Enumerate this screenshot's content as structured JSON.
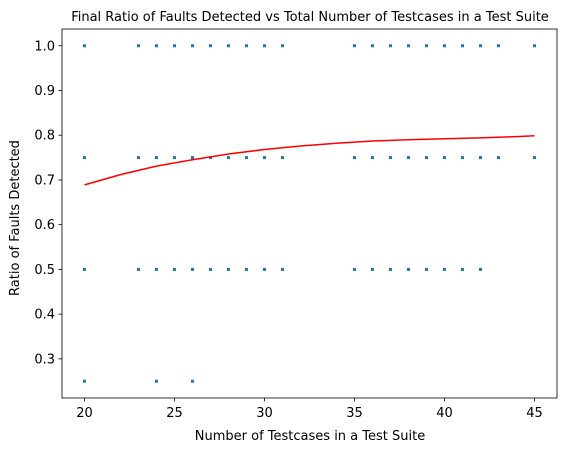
{
  "chart_data": {
    "type": "scatter",
    "title": "Final Ratio of Faults Detected vs Total Number of Testcases in a Test Suite",
    "xlabel": "Number of Testcases in a Test Suite",
    "ylabel": "Ratio of Faults Detected",
    "xlim": [
      18.75,
      46.25
    ],
    "ylim": [
      0.2125,
      1.0375
    ],
    "x_ticks": [
      20,
      25,
      30,
      35,
      40,
      45
    ],
    "y_ticks": [
      0.3,
      0.4,
      0.5,
      0.6,
      0.7,
      0.8,
      0.9,
      1.0
    ],
    "x_tick_labels": [
      "20",
      "25",
      "30",
      "35",
      "40",
      "45"
    ],
    "y_tick_labels": [
      "0.3",
      "0.4",
      "0.5",
      "0.6",
      "0.7",
      "0.8",
      "0.9",
      "1.0"
    ],
    "grid": false,
    "series": [
      {
        "kind": "points",
        "color": "#1f77b4",
        "points": [
          [
            20,
            1.0
          ],
          [
            23,
            1.0
          ],
          [
            24,
            1.0
          ],
          [
            25,
            1.0
          ],
          [
            26,
            1.0
          ],
          [
            27,
            1.0
          ],
          [
            28,
            1.0
          ],
          [
            29,
            1.0
          ],
          [
            30,
            1.0
          ],
          [
            31,
            1.0
          ],
          [
            35,
            1.0
          ],
          [
            36,
            1.0
          ],
          [
            37,
            1.0
          ],
          [
            38,
            1.0
          ],
          [
            39,
            1.0
          ],
          [
            40,
            1.0
          ],
          [
            41,
            1.0
          ],
          [
            42,
            1.0
          ],
          [
            43,
            1.0
          ],
          [
            45,
            1.0
          ],
          [
            20,
            0.75
          ],
          [
            23,
            0.75
          ],
          [
            24,
            0.75
          ],
          [
            25,
            0.75
          ],
          [
            26,
            0.75
          ],
          [
            27,
            0.75
          ],
          [
            28,
            0.75
          ],
          [
            29,
            0.75
          ],
          [
            30,
            0.75
          ],
          [
            31,
            0.75
          ],
          [
            35,
            0.75
          ],
          [
            36,
            0.75
          ],
          [
            37,
            0.75
          ],
          [
            38,
            0.75
          ],
          [
            39,
            0.75
          ],
          [
            40,
            0.75
          ],
          [
            41,
            0.75
          ],
          [
            42,
            0.75
          ],
          [
            43,
            0.75
          ],
          [
            45,
            0.75
          ],
          [
            20,
            0.5
          ],
          [
            23,
            0.5
          ],
          [
            24,
            0.5
          ],
          [
            25,
            0.5
          ],
          [
            26,
            0.5
          ],
          [
            27,
            0.5
          ],
          [
            28,
            0.5
          ],
          [
            29,
            0.5
          ],
          [
            30,
            0.5
          ],
          [
            31,
            0.5
          ],
          [
            35,
            0.5
          ],
          [
            36,
            0.5
          ],
          [
            37,
            0.5
          ],
          [
            38,
            0.5
          ],
          [
            39,
            0.5
          ],
          [
            40,
            0.5
          ],
          [
            41,
            0.5
          ],
          [
            42,
            0.5
          ],
          [
            20,
            0.25
          ],
          [
            24,
            0.25
          ],
          [
            26,
            0.25
          ]
        ]
      },
      {
        "kind": "line",
        "color": "#ff0000",
        "points": [
          [
            20,
            0.689
          ],
          [
            22,
            0.712
          ],
          [
            24,
            0.731
          ],
          [
            26,
            0.745
          ],
          [
            28,
            0.758
          ],
          [
            30,
            0.768
          ],
          [
            32,
            0.776
          ],
          [
            34,
            0.782
          ],
          [
            36,
            0.787
          ],
          [
            38,
            0.79
          ],
          [
            40,
            0.792
          ],
          [
            42,
            0.794
          ],
          [
            44,
            0.797
          ],
          [
            45,
            0.799
          ]
        ]
      }
    ]
  }
}
